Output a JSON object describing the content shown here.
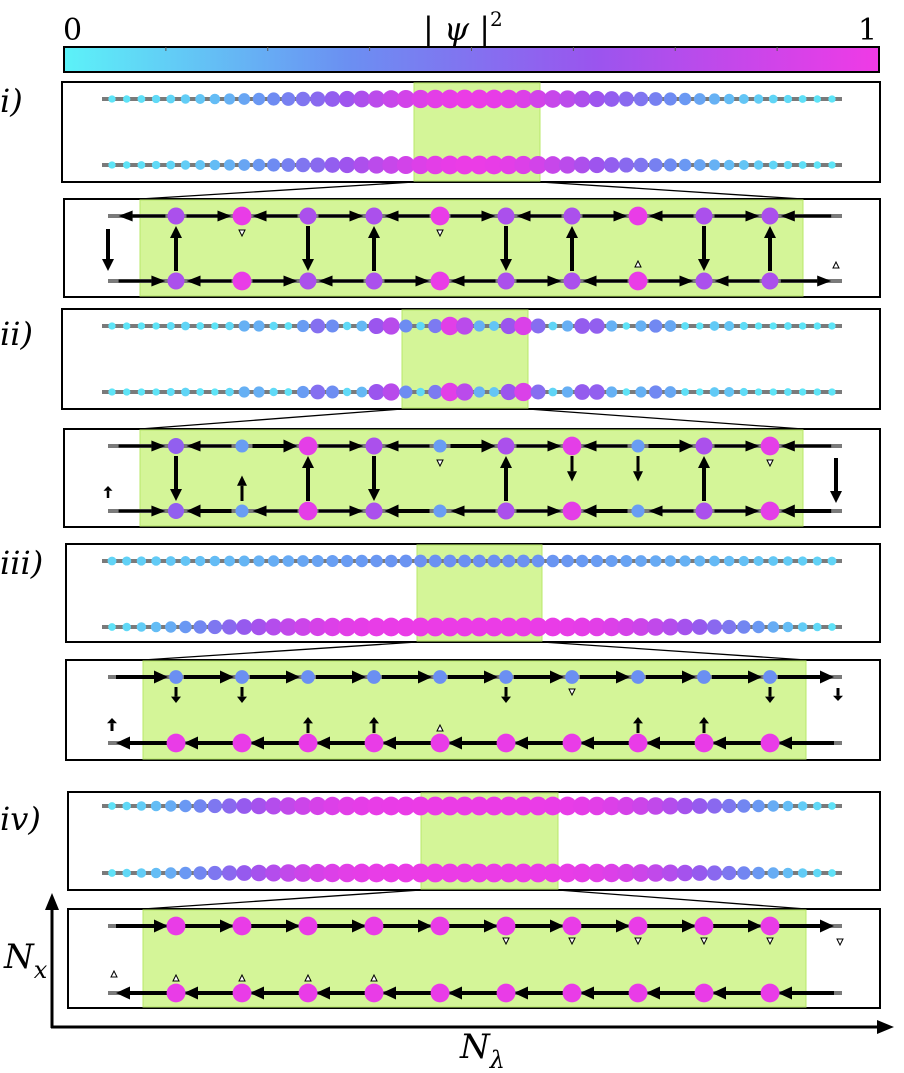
{
  "colorbar": {
    "min_label": "0",
    "max_label": "1",
    "title": "| ψ |",
    "title_sup": "2",
    "colors": [
      "#5cf2f8",
      "#6b8ff2",
      "#9a55ee",
      "#f03ae6"
    ]
  },
  "panels": [
    {
      "label": "i)",
      "overview": {
        "n_sites": 50,
        "top_profile": "central",
        "bottom_profile": "central"
      },
      "zoom": {
        "sites": [
          {
            "top": 0.72,
            "bottom": 0.72,
            "rung": "up-strong"
          },
          {
            "top": 0.97,
            "bottom": 0.97,
            "rung": "none-small-down"
          },
          {
            "top": 0.72,
            "bottom": 0.72,
            "rung": "down-strong"
          },
          {
            "top": 0.72,
            "bottom": 0.72,
            "rung": "up-strong"
          },
          {
            "top": 0.97,
            "bottom": 0.97,
            "rung": "none-small-down"
          },
          {
            "top": 0.72,
            "bottom": 0.72,
            "rung": "down-strong"
          },
          {
            "top": 0.72,
            "bottom": 0.72,
            "rung": "up-strong"
          },
          {
            "top": 0.97,
            "bottom": 0.97,
            "rung": "none-small-up"
          },
          {
            "top": 0.72,
            "bottom": 0.72,
            "rung": "down-strong"
          },
          {
            "top": 0.72,
            "bottom": 0.72,
            "rung": "up-strong"
          }
        ],
        "top_bond": "alternating",
        "bottom_bond": "alternating"
      }
    },
    {
      "label": "ii)",
      "overview": {
        "n_sites": 50,
        "top_profile": "modulated",
        "bottom_profile": "modulated"
      },
      "zoom": {
        "sites": [
          {
            "top": 0.6,
            "bottom": 0.6,
            "rung": "down-strong"
          },
          {
            "top": 0.3,
            "bottom": 0.3,
            "rung": "up-medium"
          },
          {
            "top": 0.95,
            "bottom": 0.95,
            "rung": "up-strong"
          },
          {
            "top": 0.72,
            "bottom": 0.72,
            "rung": "down-strong"
          },
          {
            "top": 0.3,
            "bottom": 0.3,
            "rung": "none-small-down"
          },
          {
            "top": 0.72,
            "bottom": 0.72,
            "rung": "up-strong"
          },
          {
            "top": 0.95,
            "bottom": 0.95,
            "rung": "down-medium"
          },
          {
            "top": 0.3,
            "bottom": 0.3,
            "rung": "down-medium"
          },
          {
            "top": 0.72,
            "bottom": 0.72,
            "rung": "up-strong"
          },
          {
            "top": 0.95,
            "bottom": 0.95,
            "rung": "none-small-down"
          }
        ],
        "top_bond": "mixed",
        "bottom_bond": "mixed"
      }
    },
    {
      "label": "iii)",
      "overview": {
        "n_sites": 50,
        "top_profile": "low",
        "bottom_profile": "high"
      },
      "zoom": {
        "sites": [
          {
            "top": 0.35,
            "bottom": 0.97,
            "rung": "small-down"
          },
          {
            "top": 0.35,
            "bottom": 0.97,
            "rung": "small-down"
          },
          {
            "top": 0.35,
            "bottom": 0.97,
            "rung": "small-up"
          },
          {
            "top": 0.35,
            "bottom": 0.97,
            "rung": "small-up"
          },
          {
            "top": 0.35,
            "bottom": 0.97,
            "rung": "tiny-up"
          },
          {
            "top": 0.35,
            "bottom": 0.97,
            "rung": "small-down"
          },
          {
            "top": 0.35,
            "bottom": 0.97,
            "rung": "tiny-down"
          },
          {
            "top": 0.35,
            "bottom": 0.97,
            "rung": "small-up"
          },
          {
            "top": 0.35,
            "bottom": 0.97,
            "rung": "small-up"
          },
          {
            "top": 0.35,
            "bottom": 0.97,
            "rung": "small-down"
          }
        ],
        "top_bond": "right",
        "bottom_bond": "left"
      }
    },
    {
      "label": "iv)",
      "overview": {
        "n_sites": 50,
        "top_profile": "high",
        "bottom_profile": "high"
      },
      "zoom": {
        "sites": [
          {
            "top": 0.97,
            "bottom": 0.97,
            "rung": "tiny-up"
          },
          {
            "top": 0.97,
            "bottom": 0.97,
            "rung": "tiny-up"
          },
          {
            "top": 0.97,
            "bottom": 0.97,
            "rung": "tiny-up"
          },
          {
            "top": 0.97,
            "bottom": 0.97,
            "rung": "tiny-up"
          },
          {
            "top": 0.97,
            "bottom": 0.97,
            "rung": "none"
          },
          {
            "top": 0.97,
            "bottom": 0.97,
            "rung": "tiny-down"
          },
          {
            "top": 0.97,
            "bottom": 0.97,
            "rung": "tiny-down"
          },
          {
            "top": 0.97,
            "bottom": 0.97,
            "rung": "tiny-down"
          },
          {
            "top": 0.97,
            "bottom": 0.97,
            "rung": "tiny-down"
          },
          {
            "top": 0.97,
            "bottom": 0.97,
            "rung": "tiny-down"
          }
        ],
        "top_bond": "right",
        "bottom_bond": "left"
      }
    }
  ],
  "axes": {
    "x_label_main": "N",
    "x_label_sub": "λ",
    "y_label_main": "N",
    "y_label_sub": "x"
  },
  "highlight_color": "#d4f598",
  "rail_color": "#7a7a7a"
}
